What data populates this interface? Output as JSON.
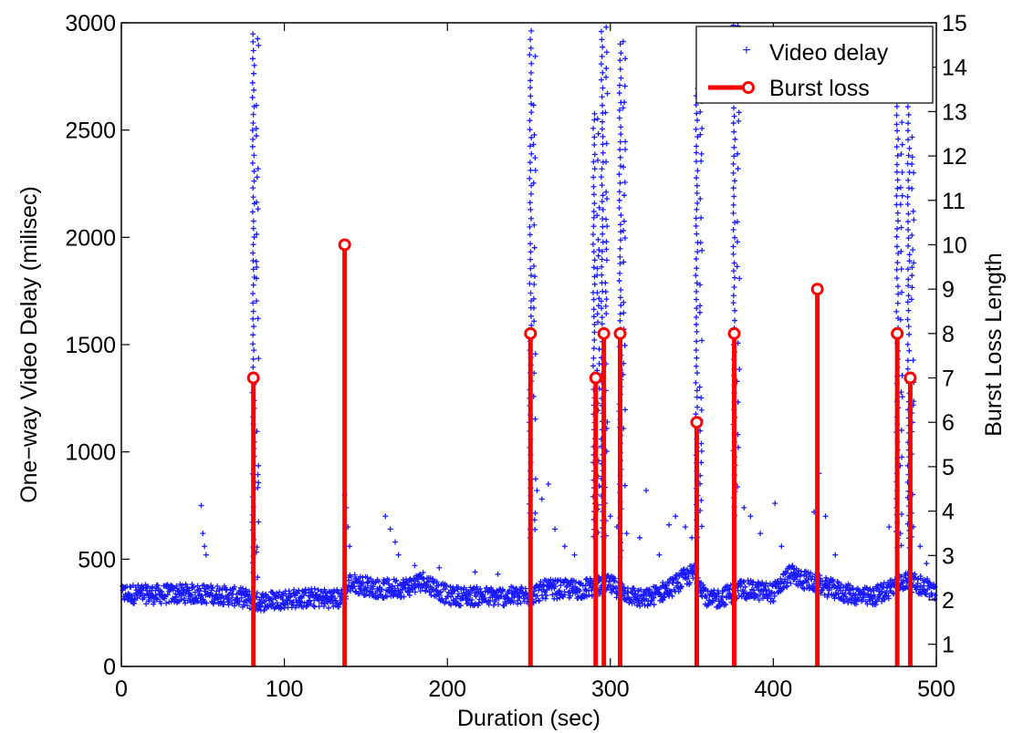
{
  "chart_data": {
    "type": "scatter",
    "title": "",
    "xlabel": "Duration (sec)",
    "ylabel_left": "One−way Video Delay (milisec)",
    "ylabel_right": "Burst Loss Length",
    "xlim": [
      0,
      500
    ],
    "ylim_left": [
      0,
      3000
    ],
    "ylim_right": [
      0.5,
      15
    ],
    "x_ticks": [
      "0",
      "100",
      "200",
      "300",
      "400",
      "500"
    ],
    "y_left_ticks": [
      "0",
      "500",
      "1000",
      "1500",
      "2000",
      "2500",
      "3000"
    ],
    "y_right_ticks": [
      "1",
      "2",
      "3",
      "4",
      "5",
      "6",
      "7",
      "8",
      "9",
      "10",
      "11",
      "12",
      "13",
      "14",
      "15"
    ],
    "grid": false,
    "legend": {
      "placement": "top-right",
      "entries": [
        "Video delay",
        "Burst loss"
      ]
    },
    "series": [
      {
        "name": "Video delay",
        "axis": "left",
        "style": "markers-plus",
        "color": "#1a1aff",
        "baseline_profile": [
          [
            0,
            340
          ],
          [
            20,
            335
          ],
          [
            40,
            340
          ],
          [
            60,
            335
          ],
          [
            75,
            320
          ],
          [
            82,
            300
          ],
          [
            100,
            315
          ],
          [
            120,
            320
          ],
          [
            135,
            315
          ],
          [
            140,
            390
          ],
          [
            160,
            360
          ],
          [
            175,
            370
          ],
          [
            185,
            400
          ],
          [
            200,
            330
          ],
          [
            230,
            325
          ],
          [
            250,
            330
          ],
          [
            260,
            360
          ],
          [
            280,
            360
          ],
          [
            300,
            380
          ],
          [
            310,
            340
          ],
          [
            320,
            310
          ],
          [
            335,
            360
          ],
          [
            345,
            410
          ],
          [
            352,
            440
          ],
          [
            360,
            300
          ],
          [
            370,
            330
          ],
          [
            380,
            360
          ],
          [
            400,
            345
          ],
          [
            410,
            430
          ],
          [
            420,
            400
          ],
          [
            430,
            375
          ],
          [
            445,
            340
          ],
          [
            460,
            320
          ],
          [
            470,
            360
          ],
          [
            480,
            400
          ],
          [
            490,
            380
          ],
          [
            500,
            350
          ]
        ],
        "spikes": [
          {
            "x": 81,
            "from": 400,
            "to": 2960
          },
          {
            "x": 251,
            "from": 600,
            "to": 3000
          },
          {
            "x": 290,
            "from": 600,
            "to": 2600
          },
          {
            "x": 295,
            "from": 600,
            "to": 3000
          },
          {
            "x": 306,
            "from": 500,
            "to": 2900
          },
          {
            "x": 353,
            "from": 600,
            "to": 2700
          },
          {
            "x": 376,
            "from": 700,
            "to": 3000
          },
          {
            "x": 476,
            "from": 550,
            "to": 2900
          },
          {
            "x": 483,
            "from": 550,
            "to": 2650
          }
        ],
        "outliers": [
          [
            49,
            750
          ],
          [
            50,
            620
          ],
          [
            51,
            560
          ],
          [
            52,
            520
          ],
          [
            137,
            800
          ],
          [
            138,
            740
          ],
          [
            139,
            650
          ],
          [
            140,
            560
          ],
          [
            162,
            700
          ],
          [
            165,
            640
          ],
          [
            168,
            580
          ],
          [
            170,
            520
          ],
          [
            180,
            470
          ],
          [
            195,
            460
          ],
          [
            217,
            440
          ],
          [
            231,
            430
          ],
          [
            255,
            820
          ],
          [
            258,
            780
          ],
          [
            262,
            850
          ],
          [
            266,
            640
          ],
          [
            272,
            560
          ],
          [
            278,
            520
          ],
          [
            300,
            700
          ],
          [
            304,
            650
          ],
          [
            310,
            620
          ],
          [
            318,
            600
          ],
          [
            322,
            820
          ],
          [
            330,
            520
          ],
          [
            336,
            660
          ],
          [
            340,
            700
          ],
          [
            346,
            650
          ],
          [
            350,
            600
          ],
          [
            382,
            740
          ],
          [
            386,
            700
          ],
          [
            392,
            620
          ],
          [
            401,
            760
          ],
          [
            405,
            560
          ],
          [
            425,
            720
          ],
          [
            428,
            900
          ],
          [
            432,
            700
          ],
          [
            438,
            520
          ],
          [
            471,
            650
          ],
          [
            478,
            620
          ],
          [
            490,
            560
          ],
          [
            494,
            480
          ]
        ]
      },
      {
        "name": "Burst loss",
        "axis": "right",
        "style": "stem",
        "color": "#ff0000",
        "points": [
          {
            "x": 81,
            "y": 7
          },
          {
            "x": 137,
            "y": 10
          },
          {
            "x": 251,
            "y": 8
          },
          {
            "x": 291,
            "y": 7
          },
          {
            "x": 296,
            "y": 8
          },
          {
            "x": 306,
            "y": 8
          },
          {
            "x": 353,
            "y": 6
          },
          {
            "x": 376,
            "y": 8
          },
          {
            "x": 427,
            "y": 9
          },
          {
            "x": 476,
            "y": 8
          },
          {
            "x": 484,
            "y": 7
          }
        ]
      }
    ]
  }
}
